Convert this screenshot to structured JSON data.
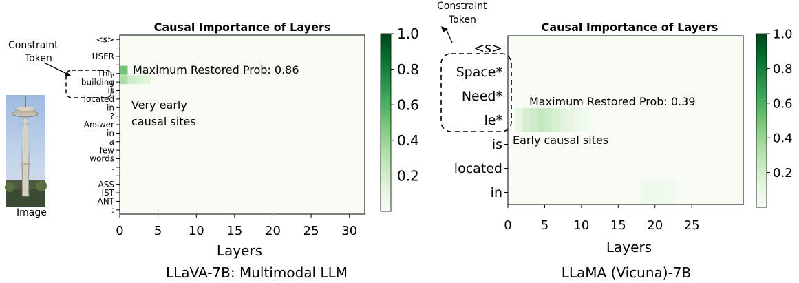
{
  "panel_left": {
    "image_caption": "Image",
    "constraint_label": [
      "Constraint",
      "Token"
    ],
    "annotation_max": "Maximum Restored Prob: 0.86",
    "annotation_sites": [
      "Very early",
      "causal sites"
    ],
    "caption": "LLaVA-7B: Multimodal LLM"
  },
  "panel_right": {
    "constraint_label": [
      "Constraint",
      "Token"
    ],
    "annotation_max": "Maximum Restored Prob: 0.39",
    "annotation_sites": "Early causal sites",
    "caption": "LLaMA (Vicuna)-7B"
  },
  "chart_data": [
    {
      "type": "heatmap",
      "title": "Causal Importance of Layers",
      "xlabel": "Layers",
      "ylabel": "",
      "x_ticks": [
        0,
        5,
        10,
        15,
        20,
        25,
        30
      ],
      "xlim": [
        0,
        32
      ],
      "y_categories": [
        "<s>",
        "USER",
        ":",
        "This",
        "building",
        "is",
        "located",
        "in",
        "?",
        "Answer",
        "in",
        "a",
        "few",
        "words",
        ".",
        "ASS",
        "IST",
        "ANT",
        ":"
      ],
      "y_tick_labels": [
        "<s>",
        "",
        "USER",
        "",
        "This",
        "building",
        "is",
        "located",
        "in",
        "?",
        "Answer",
        "in",
        "a",
        "few",
        "words",
        ".",
        "",
        "ASS",
        "IST",
        "ANT",
        ":"
      ],
      "colorbar": {
        "ticks": [
          0.2,
          0.4,
          0.6,
          0.8,
          1.0
        ],
        "range": [
          0,
          1.0
        ],
        "colormap": "Greens"
      },
      "max_value": 0.86,
      "cells": [
        {
          "token": "This",
          "layer": 0,
          "value": 0.5
        },
        {
          "token": "building",
          "layer": 0,
          "value": 0.33
        },
        {
          "token": "building",
          "layer": 1,
          "value": 0.22
        },
        {
          "token": "building",
          "layer": 2,
          "value": 0.18
        },
        {
          "token": "building",
          "layer": 3,
          "value": 0.14
        }
      ]
    },
    {
      "type": "heatmap",
      "title": "Causal Importance of Layers",
      "xlabel": "Layers",
      "ylabel": "",
      "x_ticks": [
        0,
        5,
        10,
        15,
        20,
        25
      ],
      "xlim": [
        0,
        32
      ],
      "y_categories": [
        "<s>",
        "Space*",
        "Need*",
        "le*",
        "is",
        "located",
        "in"
      ],
      "colorbar": {
        "ticks": [
          0.2,
          0.4,
          0.6,
          0.8,
          1.0
        ],
        "range": [
          0,
          1.0
        ],
        "colormap": "Greens"
      },
      "max_value": 0.39,
      "cells": [
        {
          "token": "le*",
          "layer": 1,
          "value": 0.1
        },
        {
          "token": "le*",
          "layer": 2,
          "value": 0.18
        },
        {
          "token": "le*",
          "layer": 3,
          "value": 0.22
        },
        {
          "token": "le*",
          "layer": 4,
          "value": 0.26
        },
        {
          "token": "le*",
          "layer": 5,
          "value": 0.22
        },
        {
          "token": "le*",
          "layer": 6,
          "value": 0.18
        },
        {
          "token": "le*",
          "layer": 7,
          "value": 0.14
        },
        {
          "token": "le*",
          "layer": 8,
          "value": 0.1
        },
        {
          "token": "le*",
          "layer": 9,
          "value": 0.06
        },
        {
          "token": "le*",
          "layer": 10,
          "value": 0.04
        },
        {
          "token": "in",
          "layer": 18,
          "value": 0.04
        },
        {
          "token": "in",
          "layer": 19,
          "value": 0.05
        },
        {
          "token": "in",
          "layer": 20,
          "value": 0.05
        },
        {
          "token": "in",
          "layer": 21,
          "value": 0.04
        },
        {
          "token": "in",
          "layer": 22,
          "value": 0.03
        }
      ]
    }
  ],
  "colors": {
    "heat_low": "#f7fcf5",
    "heat_high": "#00441b",
    "dashed_box": "#000000"
  }
}
